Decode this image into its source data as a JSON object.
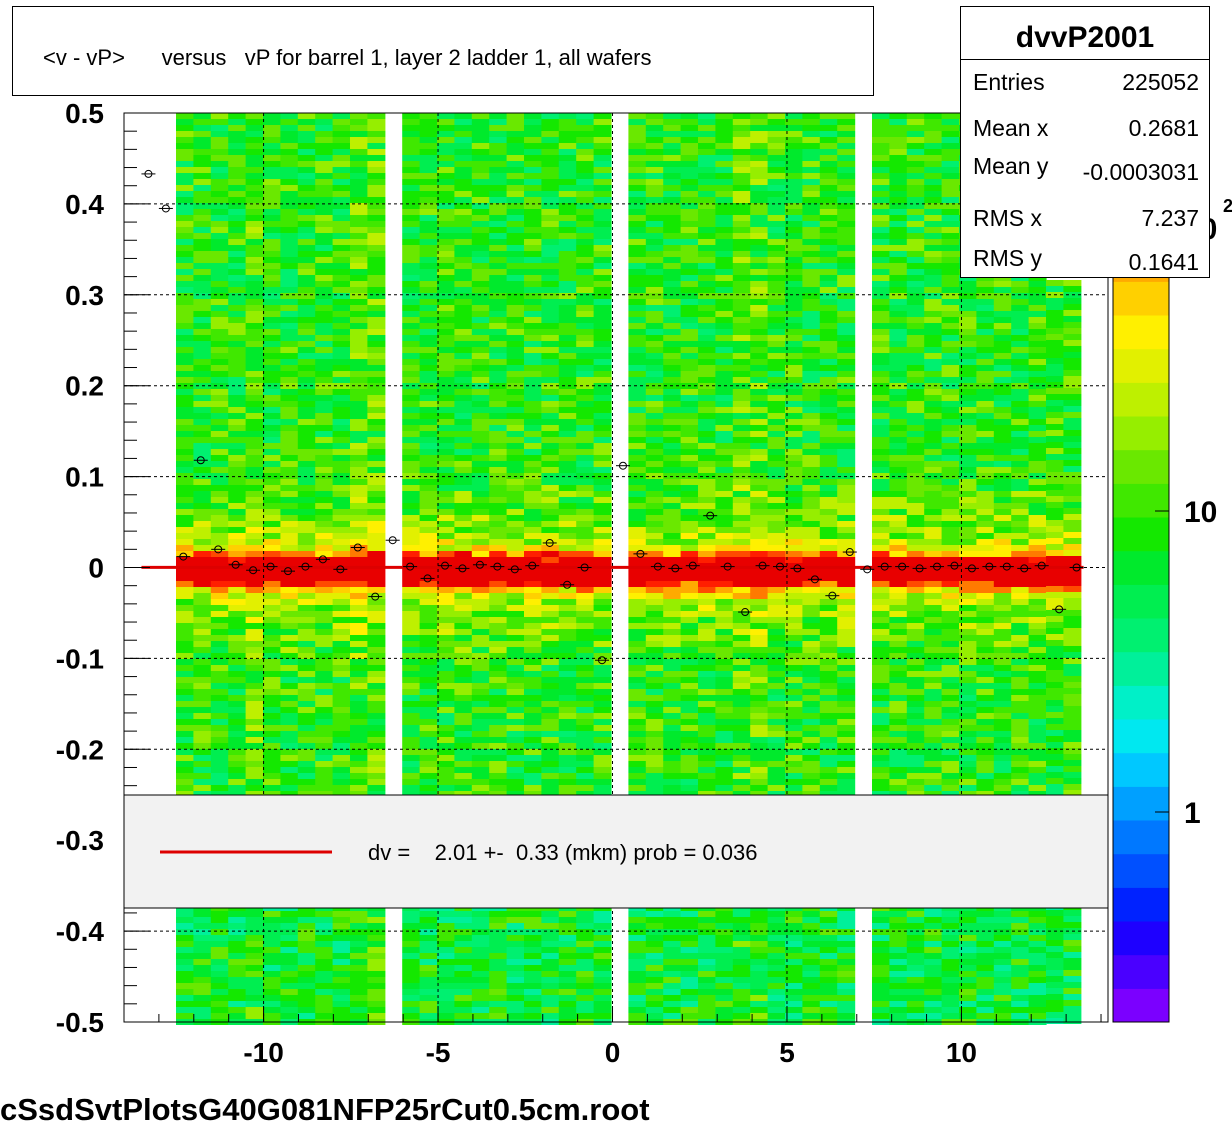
{
  "title": "<v - vP>      versus   vP for barrel 1, layer 2 ladder 1, all wafers",
  "footer": "cSsdSvtPlotsG40G081NFP25rCut0.5cm.root",
  "stats": {
    "name": "dvvP2001",
    "rows": [
      {
        "key": "Entries",
        "value": "225052"
      },
      {
        "key": "Mean x",
        "value": "0.2681"
      },
      {
        "key": "Mean y",
        "value": "-0.0003031"
      },
      {
        "key": "RMS x",
        "value": "7.237"
      },
      {
        "key": "RMS y",
        "value": "0.1641"
      }
    ]
  },
  "legend": {
    "label": "dv =    2.01 +-  0.33 (mkm) prob = 0.036",
    "line_color": "#dd0000"
  },
  "colorbar": {
    "tick_labels": [
      "1",
      "10",
      "10"
    ],
    "exponent_label": "2",
    "palette": [
      "#7b00ff",
      "#4a00ff",
      "#1e00ff",
      "#0022ff",
      "#0050ff",
      "#0078ff",
      "#00a0ff",
      "#00c8ff",
      "#00e8f0",
      "#00f0c8",
      "#00f09a",
      "#00f070",
      "#00ee50",
      "#00ea2c",
      "#14e800",
      "#40e800",
      "#6ae800",
      "#96ee00",
      "#bef000",
      "#e2f000",
      "#fff000",
      "#ffd000",
      "#ffaa00",
      "#ff7a00",
      "#ff4a00",
      "#ff1e00",
      "#e80000"
    ]
  },
  "chart_data": {
    "type": "heatmap",
    "xlim": [
      -14,
      14.2
    ],
    "ylim": [
      -0.5,
      0.5
    ],
    "x_ticks": [
      -10,
      -5,
      0,
      5,
      10
    ],
    "y_ticks": [
      0.5,
      0.4,
      0.3,
      0.2,
      0.1,
      0,
      -0.1,
      -0.2,
      -0.3,
      -0.4,
      -0.5
    ],
    "x_tick_labels": [
      "-10",
      "-5",
      "0",
      "5",
      "10"
    ],
    "y_tick_labels": [
      "0.5",
      "0.4",
      "0.3",
      "0.2",
      "0.1",
      "0",
      "-0.1",
      "-0.2",
      "-0.3",
      "-0.4",
      "-0.5"
    ],
    "grid": true,
    "fit_line": {
      "y": 0.0002,
      "x_range": [
        -13.5,
        13.5
      ]
    },
    "profile_points": {
      "x": [
        -13.3,
        -12.8,
        -12.3,
        -11.8,
        -11.3,
        -10.8,
        -10.3,
        -9.8,
        -9.3,
        -8.8,
        -8.3,
        -7.8,
        -7.3,
        -6.8,
        -6.3,
        -5.8,
        -5.3,
        -4.8,
        -4.3,
        -3.8,
        -3.3,
        -2.8,
        -2.3,
        -1.8,
        -1.3,
        -0.8,
        -0.3,
        0.3,
        0.8,
        1.3,
        1.8,
        2.3,
        2.8,
        3.3,
        3.8,
        4.3,
        4.8,
        5.3,
        5.8,
        6.3,
        6.8,
        7.3,
        7.8,
        8.3,
        8.8,
        9.3,
        9.8,
        10.3,
        10.8,
        11.3,
        11.8,
        12.3,
        12.8,
        13.3
      ],
      "y": [
        0.433,
        0.395,
        0.012,
        0.118,
        0.02,
        0.003,
        -0.003,
        0.001,
        -0.004,
        0.001,
        0.009,
        -0.002,
        0.022,
        -0.032,
        0.03,
        0.001,
        -0.012,
        0.002,
        -0.001,
        0.003,
        0.001,
        -0.002,
        0.002,
        0.027,
        -0.019,
        0.0,
        -0.102,
        0.112,
        0.015,
        0.001,
        -0.001,
        0.002,
        0.057,
        0.001,
        -0.049,
        0.002,
        0.001,
        -0.001,
        -0.013,
        -0.031,
        0.017,
        -0.002,
        0.001,
        0.001,
        -0.001,
        0.001,
        0.002,
        -0.001,
        0.001,
        0.001,
        -0.001,
        0.002,
        -0.046,
        0.0
      ]
    }
  }
}
